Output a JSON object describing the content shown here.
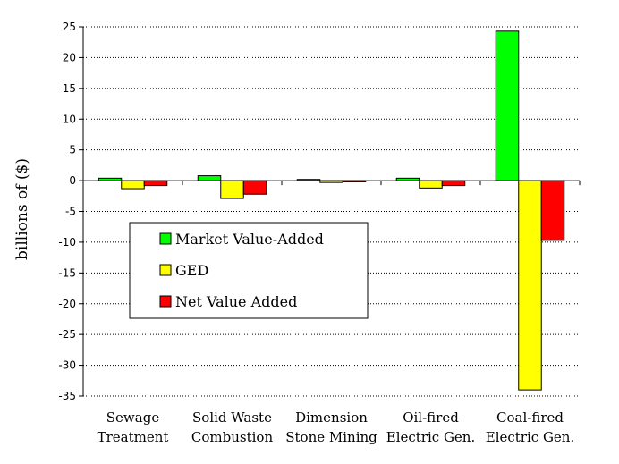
{
  "chart_data": {
    "type": "bar",
    "title": "",
    "xlabel": "",
    "ylabel": "billions of ($)",
    "ylim": [
      -35,
      25
    ],
    "yticks": [
      25,
      20,
      15,
      10,
      5,
      0,
      -5,
      -10,
      -15,
      -20,
      -25,
      -30,
      -35
    ],
    "grid": "horizontal dotted",
    "legend_position": "lower-left",
    "categories": [
      [
        "Sewage",
        "Treatment"
      ],
      [
        "Solid Waste",
        "Combustion"
      ],
      [
        "Dimension",
        "Stone Mining"
      ],
      [
        "Oil-fired",
        "Electric Gen."
      ],
      [
        "Coal-fired",
        "Electric Gen."
      ]
    ],
    "series": [
      {
        "name": "Market Value-Added",
        "color": "#00ff00",
        "values": [
          0.4,
          0.8,
          0.2,
          0.4,
          24.3
        ]
      },
      {
        "name": "GED",
        "color": "#ffff00",
        "values": [
          -1.3,
          -2.9,
          -0.3,
          -1.2,
          -34.0
        ]
      },
      {
        "name": "Net Value Added",
        "color": "#ff0000",
        "values": [
          -0.8,
          -2.2,
          -0.2,
          -0.8,
          -9.7
        ]
      }
    ]
  }
}
